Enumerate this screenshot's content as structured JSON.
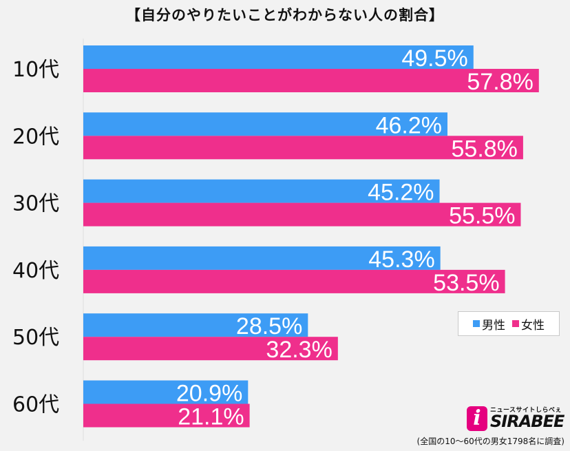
{
  "chart_data": {
    "type": "bar",
    "orientation": "horizontal",
    "title": "【自分のやりたいことがわからない人の割合】",
    "categories": [
      "10代",
      "20代",
      "30代",
      "40代",
      "50代",
      "60代"
    ],
    "series": [
      {
        "name": "男性",
        "color": "#3d9cf5",
        "values": [
          49.5,
          46.2,
          45.2,
          45.3,
          28.5,
          20.9
        ],
        "labels": [
          "49.5%",
          "46.2%",
          "45.2%",
          "45.3%",
          "28.5%",
          "20.9%"
        ]
      },
      {
        "name": "女性",
        "color": "#ef2f8c",
        "values": [
          57.8,
          55.8,
          55.5,
          53.5,
          32.3,
          21.1
        ],
        "labels": [
          "57.8%",
          "55.8%",
          "55.5%",
          "53.5%",
          "32.3%",
          "21.1%"
        ]
      }
    ],
    "xlim": [
      0,
      100
    ],
    "grid": false,
    "legend_position": "right"
  },
  "legend": {
    "male": "男性",
    "female": "女性"
  },
  "logo": {
    "tagline": "ニュースサイトしらべぇ",
    "mark": "i",
    "name": "SIRABEE"
  },
  "footnote": "(全国の10〜60代の男女1798名に調査)"
}
